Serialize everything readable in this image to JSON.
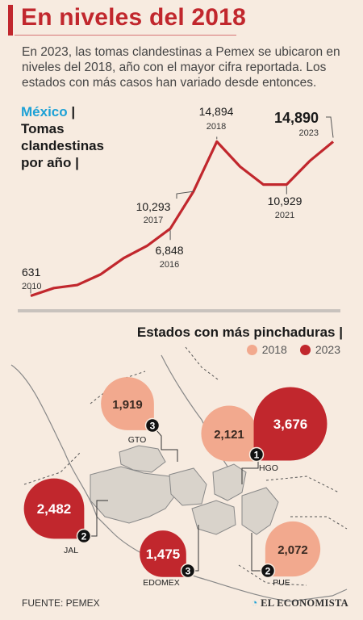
{
  "title": "En niveles del 2018",
  "intro": "En 2023, las tomas clandestinas a Pemex se ubicaron en niveles del 2018, año con el mayor cifra reportada. Los estados con más casos han variado desde entonces.",
  "chart_heading": {
    "country": "México",
    "line1": "Tomas",
    "line2": "clandestinas",
    "line3": "por año"
  },
  "chart_data": [
    {
      "type": "line",
      "x": [
        2010,
        2011,
        2012,
        2013,
        2014,
        2015,
        2016,
        2017,
        2018,
        2019,
        2020,
        2021,
        2022,
        2023
      ],
      "values": [
        631,
        1361,
        1635,
        2614,
        4125,
        5252,
        6848,
        10293,
        14894,
        12581,
        10929,
        10929,
        13120,
        14890
      ],
      "labeled_points": [
        {
          "year": "2010",
          "value": "631"
        },
        {
          "year": "2016",
          "value": "6,848"
        },
        {
          "year": "2017",
          "value": "10,293"
        },
        {
          "year": "2018",
          "value": "14,894"
        },
        {
          "year": "2021",
          "value": "10,929"
        },
        {
          "year": "2023",
          "value": "14,890"
        }
      ],
      "color": "#c1272d"
    },
    {
      "type": "bubble",
      "title": "Estados con más pinchaduras",
      "legend": [
        {
          "label": "2018",
          "color": "#f2a98e"
        },
        {
          "label": "2023",
          "color": "#c1272d"
        }
      ],
      "points": [
        {
          "state": "GTO",
          "year": "2018",
          "value": 1919,
          "label": "1,919",
          "rank": "3"
        },
        {
          "state": "HGO",
          "year": "2018",
          "value": 2121,
          "label": "2,121"
        },
        {
          "state": "HGO",
          "year": "2023",
          "value": 3676,
          "label": "3,676",
          "rank": "1"
        },
        {
          "state": "JAL",
          "year": "2023",
          "value": 2482,
          "label": "2,482",
          "rank": "2"
        },
        {
          "state": "EDOMEX",
          "year": "2023",
          "value": 1475,
          "label": "1,475",
          "rank": "3"
        },
        {
          "state": "PUE",
          "year": "2018",
          "value": 2072,
          "label": "2,072",
          "rank": "2"
        }
      ]
    }
  ],
  "source": "FUENTE: PEMEX",
  "brand": "EL ECONOMISTA"
}
